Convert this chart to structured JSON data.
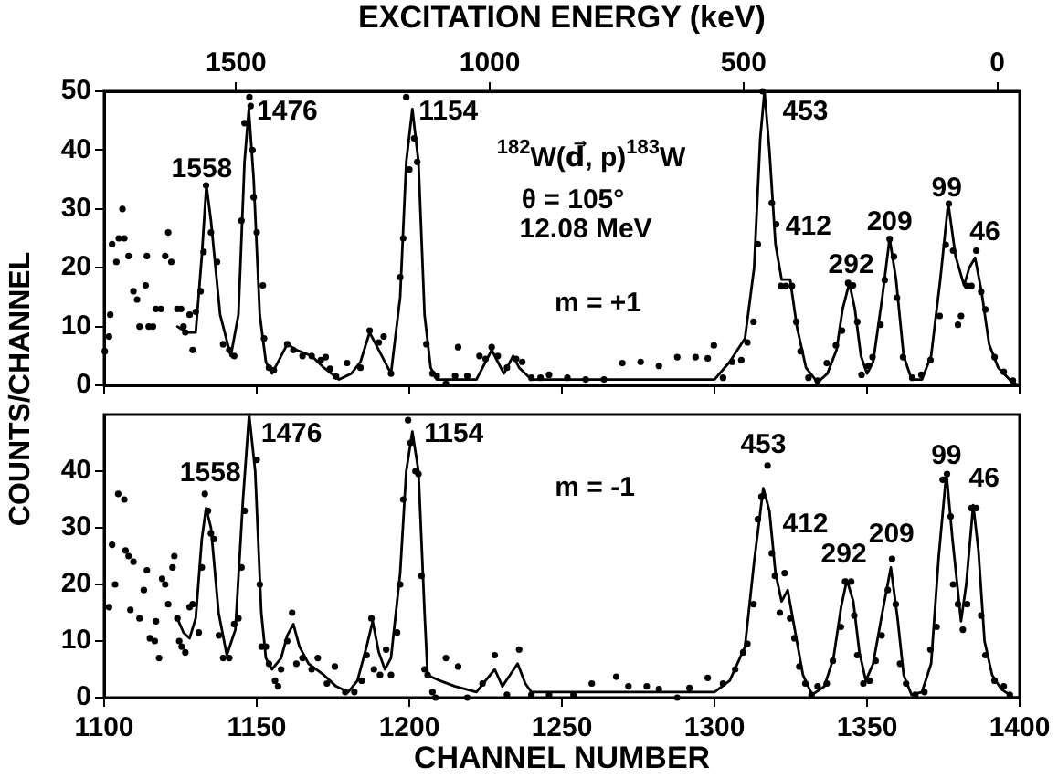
{
  "chart_data": [
    {
      "type": "scatter",
      "x2label": "EXCITATION ENERGY (keV)",
      "ylabel": "COUNTS/CHANNEL",
      "xlim": [
        1100,
        1400
      ],
      "xticks": [
        1100,
        1150,
        1200,
        1250,
        1300,
        1350,
        1400
      ],
      "ylim": [
        0,
        50
      ],
      "yticks": [
        0,
        10,
        20,
        30,
        40,
        50
      ],
      "x2lim": [
        1760,
        -44
      ],
      "x2ticks": [
        1500,
        1000,
        500,
        0
      ],
      "tick_labels": "y",
      "grid": false,
      "legend": false,
      "marker": "circle",
      "annotations": [
        "1558",
        "1476",
        "1154",
        "453",
        "412",
        "292",
        "209",
        "99",
        "46",
        "$^{182}$W(d⃗, p)$^{183}$W",
        "θ = 105°",
        "12.08 MeV",
        "m = +1"
      ],
      "series": [
        {
          "color": "#000000",
          "x": [
            1100.2,
            1101.6,
            1102,
            1102.6,
            1104,
            1104.8,
            1106,
            1106.6,
            1108,
            1109.6,
            1110.8,
            1111.6,
            1113.6,
            1114,
            1114.6,
            1116,
            1117,
            1118.6,
            1120,
            1121,
            1122,
            1124,
            1125.2,
            1126,
            1126.6,
            1128,
            1129,
            1130,
            1131.6,
            1132.6,
            1133.4,
            1135,
            1137,
            1139,
            1141,
            1142.6,
            1145,
            1146,
            1147.6,
            1148,
            1148.6,
            1149,
            1150,
            1152,
            1152.4,
            1154,
            1155.6,
            1160,
            1162,
            1165,
            1168,
            1171,
            1172.6,
            1174,
            1176,
            1179.6,
            1184,
            1187,
            1190,
            1191.6,
            1194,
            1197,
            1198,
            1199,
            1200,
            1201.6,
            1202.6,
            1205.6,
            1207.6,
            1209,
            1212,
            1215,
            1216,
            1219,
            1223,
            1225,
            1227,
            1229,
            1232,
            1235,
            1237,
            1240,
            1243,
            1245.8,
            1251.8,
            1257.8,
            1263.8,
            1269.8,
            1275.8,
            1281.8,
            1287.8,
            1293.8,
            1297.8,
            1299.8,
            1302.8,
            1305.8,
            1308.8,
            1310.8,
            1312.8,
            1314.2,
            1315.8,
            1318.8,
            1320.2,
            1321.8,
            1323.4,
            1325.4,
            1326.8,
            1328.2,
            1330.8,
            1333.8,
            1336.8,
            1339.8,
            1341.8,
            1343.8,
            1345.4,
            1346.8,
            1348.2,
            1350.4,
            1351.8,
            1354.4,
            1355.8,
            1357.4,
            1358.8,
            1359.8,
            1361.8,
            1364.8,
            1367.8,
            1370.8,
            1373.8,
            1375.8,
            1376.8,
            1378.2,
            1379.8,
            1380.8,
            1382.8,
            1384.2,
            1385.8,
            1387.4,
            1388.8,
            1391.8,
            1394.8,
            1397.8
          ],
          "values": [
            5.8,
            8.3,
            12,
            24,
            21,
            25,
            30,
            25,
            22,
            16,
            14.6,
            10,
            17,
            22,
            10,
            10,
            13,
            13,
            22,
            26,
            21,
            13,
            13,
            10,
            9,
            12,
            6,
            12.5,
            16,
            22.7,
            34,
            26,
            21,
            7,
            6,
            5,
            28,
            44.6,
            49,
            47.5,
            40,
            32,
            26,
            17,
            8,
            3,
            2.6,
            7,
            6,
            5,
            5,
            4.3,
            4.8,
            2.8,
            1.5,
            3.8,
            3,
            9.3,
            7.3,
            8.3,
            2,
            18.4,
            25,
            49,
            36.7,
            42,
            38,
            7,
            2,
            1.6,
            0.3,
            1.6,
            6.5,
            1.6,
            5,
            4.5,
            6.5,
            5,
            3,
            4.5,
            4,
            1.3,
            1.3,
            1.8,
            1.3,
            1,
            1,
            3.8,
            4,
            3.3,
            4.8,
            4.8,
            4.6,
            6.8,
            1.3,
            4,
            4.3,
            7.3,
            10.8,
            24,
            50,
            31,
            27.4,
            16.9,
            16.9,
            16.9,
            10.8,
            5.8,
            1.3,
            0.8,
            3.8,
            6.8,
            9.3,
            17.4,
            17,
            10.8,
            1.8,
            3.3,
            4.8,
            10.3,
            17.9,
            24.9,
            21.9,
            14.9,
            4.8,
            1.3,
            1.8,
            4.3,
            11.8,
            23.9,
            30.9,
            22.9,
            10.3,
            11.8,
            16.9,
            16.9,
            22.9,
            15.9,
            12.9,
            4.8,
            2.3,
            0.8
          ]
        },
        {
          "type": "line",
          "color": "#000000",
          "marker": "none",
          "x": [
            1124,
            1127,
            1130,
            1132,
            1133.5,
            1135,
            1138,
            1141.5,
            1144,
            1146,
            1147.4,
            1149,
            1151,
            1153,
            1155,
            1158,
            1160,
            1163,
            1168,
            1172,
            1177,
            1181,
            1184,
            1187,
            1190,
            1194,
            1197,
            1199,
            1201,
            1203,
            1205,
            1207,
            1209,
            1215,
            1222,
            1225,
            1227,
            1229,
            1231,
            1234,
            1236,
            1240,
            1270,
            1300,
            1305,
            1310,
            1313,
            1315,
            1316.4,
            1318,
            1320,
            1322,
            1324.8,
            1327,
            1330,
            1333.8,
            1337,
            1340,
            1342,
            1344.2,
            1346,
            1348,
            1350,
            1352,
            1355,
            1357.4,
            1359.5,
            1362,
            1364.6,
            1368,
            1371,
            1374,
            1376.6,
            1379,
            1381.8,
            1383.5,
            1385.4,
            1387.5,
            1390,
            1393,
            1397.6,
            1400
          ],
          "values": [
            10,
            9,
            9,
            22,
            34,
            28,
            12,
            5,
            12,
            38,
            47,
            35,
            12,
            4,
            2,
            5,
            7,
            6,
            5,
            3,
            1,
            2,
            4,
            9,
            6,
            2,
            15,
            38,
            47,
            38,
            12,
            3,
            1,
            1,
            1,
            4,
            6,
            4,
            2,
            5,
            3,
            1,
            1,
            1,
            4,
            8,
            20,
            42,
            50,
            40,
            24,
            18,
            18,
            10,
            3,
            0.5,
            2,
            6,
            13,
            17.4,
            13,
            5,
            2,
            4,
            15,
            25,
            18,
            5,
            1,
            1,
            5,
            18,
            31,
            22,
            17,
            20,
            21.7,
            16,
            7,
            3,
            0.5,
            0
          ]
        }
      ]
    },
    {
      "type": "scatter",
      "xlabel": "CHANNEL NUMBER",
      "xlim": [
        1100,
        1400
      ],
      "xticks": [
        1100,
        1150,
        1200,
        1250,
        1300,
        1350,
        1400
      ],
      "ylim": [
        0,
        50
      ],
      "yticks": [
        0,
        10,
        20,
        30,
        40
      ],
      "grid": false,
      "legend": false,
      "marker": "circle",
      "annotations": [
        "1558",
        "1476",
        "1154",
        "453",
        "412",
        "292",
        "209",
        "99",
        "46",
        "m = -1"
      ],
      "series": [
        {
          "color": "#000000",
          "x": [
            1101.6,
            1102.6,
            1103.6,
            1104.6,
            1106.6,
            1107,
            1108,
            1108.6,
            1109.6,
            1111.6,
            1113,
            1114,
            1115,
            1116.6,
            1117,
            1118,
            1119,
            1120,
            1121,
            1122.4,
            1123,
            1124,
            1124.6,
            1125.4,
            1126.6,
            1128,
            1129,
            1131,
            1132,
            1133,
            1134,
            1135,
            1136,
            1137.6,
            1139,
            1141,
            1142.6,
            1144,
            1145,
            1146,
            1150,
            1151,
            1151.6,
            1153,
            1154,
            1156,
            1157,
            1158,
            1160,
            1161.6,
            1163,
            1165,
            1168,
            1170,
            1173,
            1175.6,
            1179,
            1182,
            1184.4,
            1186,
            1187.6,
            1188.4,
            1190.4,
            1192.4,
            1194,
            1196,
            1197,
            1198,
            1199.6,
            1200.4,
            1202,
            1203,
            1204,
            1205,
            1206,
            1207.6,
            1208.6,
            1212,
            1216,
            1219,
            1224,
            1228,
            1232,
            1236,
            1240,
            1245.8,
            1253.8,
            1259.8,
            1267.8,
            1271.8,
            1277.8,
            1281.8,
            1287.8,
            1291.8,
            1297.8,
            1302.8,
            1306.8,
            1309.4,
            1310.8,
            1312.8,
            1314.2,
            1315.4,
            1317.4,
            1318.8,
            1319.8,
            1321.4,
            1323,
            1324.8,
            1326.2,
            1327.8,
            1329.8,
            1331.8,
            1333.8,
            1336.8,
            1338.8,
            1341.4,
            1342.8,
            1344.8,
            1345.8,
            1346.8,
            1348.8,
            1350.8,
            1352.8,
            1354.8,
            1356.8,
            1358.2,
            1359.4,
            1360.8,
            1362.8,
            1365.8,
            1368.8,
            1370.8,
            1372.8,
            1374.8,
            1376.2,
            1377.4,
            1378.2,
            1379.8,
            1381.4,
            1382.8,
            1384.2,
            1385.8,
            1387.4,
            1388.8,
            1391.8,
            1394.8,
            1396.8
          ],
          "values": [
            16,
            27,
            20,
            36,
            35,
            26,
            25,
            15.5,
            24,
            14,
            19,
            22.5,
            10.5,
            10,
            13.5,
            7,
            21,
            20,
            16.5,
            23,
            25,
            14,
            10,
            9,
            8,
            16,
            16.5,
            11.5,
            23,
            36,
            33,
            29,
            28,
            11,
            7,
            7,
            13,
            14,
            23,
            33,
            42,
            20,
            9,
            9,
            6,
            3,
            2,
            5,
            10,
            15,
            6,
            7,
            5,
            7,
            2.5,
            5.5,
            1,
            1,
            3,
            7.5,
            14,
            5,
            4,
            8.5,
            4,
            11.5,
            20,
            35,
            49,
            45,
            40,
            39.5,
            21.5,
            5,
            4,
            1,
            0,
            7,
            5.5,
            0,
            2.5,
            7.5,
            0.5,
            8.5,
            0.5,
            0.5,
            0.5,
            2.5,
            3.7,
            2,
            2,
            1.5,
            0,
            1.7,
            3.5,
            2.5,
            5,
            8,
            9.5,
            16.5,
            31.5,
            35.5,
            41,
            25.5,
            21.5,
            15,
            22,
            14,
            10.5,
            5.5,
            2.5,
            0.5,
            2,
            2.5,
            6.5,
            12.5,
            20.5,
            20.5,
            14.5,
            7.5,
            2.5,
            3,
            6.5,
            11,
            19,
            24.5,
            16.5,
            6,
            2.5,
            0.5,
            1,
            8.5,
            12.5,
            38.5,
            39.5,
            32,
            20,
            16.5,
            12,
            16.5,
            33.5,
            33.5,
            14.5,
            7.5,
            3,
            2,
            0.5
          ]
        },
        {
          "type": "line",
          "color": "#000000",
          "marker": "none",
          "x": [
            1124,
            1126,
            1128,
            1130,
            1132,
            1133.4,
            1135,
            1137.5,
            1140.2,
            1143,
            1145.5,
            1147.5,
            1149.5,
            1151.5,
            1153,
            1155,
            1158,
            1160,
            1162,
            1164,
            1167,
            1172,
            1176,
            1180,
            1183,
            1186,
            1188,
            1190,
            1192,
            1194,
            1197,
            1199,
            1201,
            1203,
            1205,
            1206,
            1210,
            1215,
            1222,
            1225,
            1228,
            1230.5,
            1233,
            1235.5,
            1238,
            1240,
            1270,
            1300,
            1305,
            1310,
            1313,
            1316,
            1318,
            1320,
            1322,
            1324,
            1326,
            1329,
            1332,
            1336,
            1339,
            1341.5,
            1343.4,
            1345.5,
            1347.5,
            1349.6,
            1352,
            1355,
            1357.8,
            1360,
            1362,
            1364.6,
            1368,
            1371,
            1373.5,
            1376,
            1378,
            1380.8,
            1382.5,
            1384.8,
            1386.5,
            1388.5,
            1391,
            1394,
            1398,
            1400
          ],
          "values": [
            14,
            11.5,
            10.5,
            14,
            28,
            33.5,
            30,
            15,
            7.5,
            12,
            35,
            50,
            40,
            15,
            7,
            5,
            7,
            11,
            13,
            9,
            6,
            4,
            2,
            1,
            3,
            9,
            13.5,
            8,
            5,
            7,
            22,
            40,
            47,
            40,
            15,
            4,
            3,
            2,
            1,
            3,
            5,
            2,
            4,
            6,
            2.5,
            1,
            1,
            1,
            3,
            9,
            24,
            37,
            33,
            22,
            17,
            19,
            13,
            4,
            0.5,
            2,
            7,
            16,
            20.8,
            17,
            8,
            3,
            6,
            15,
            23,
            14,
            4,
            0.5,
            1,
            6,
            25,
            39.7,
            28,
            13.5,
            20,
            34,
            26,
            10,
            4,
            1.5,
            0,
            0
          ]
        }
      ]
    }
  ]
}
